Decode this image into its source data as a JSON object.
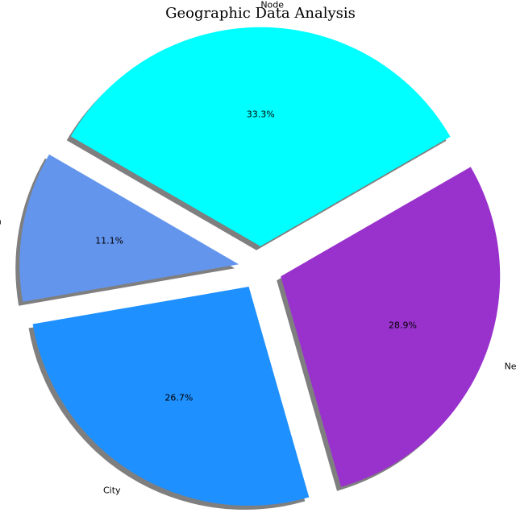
{
  "chart_data": {
    "type": "pie",
    "title": "Geographic Data Analysis",
    "categories": [
      "Node",
      "Region",
      "City",
      "Network"
    ],
    "values": [
      33.3,
      11.1,
      26.7,
      28.9
    ],
    "percent_labels": [
      "33.3%",
      "11.1%",
      "26.7%",
      "28.9%"
    ],
    "colors": [
      "#00ffff",
      "#6495ed",
      "#1e90ff",
      "#9932cc"
    ],
    "exploded": true,
    "shadow": true,
    "start_angle": 30,
    "legend": "none"
  }
}
